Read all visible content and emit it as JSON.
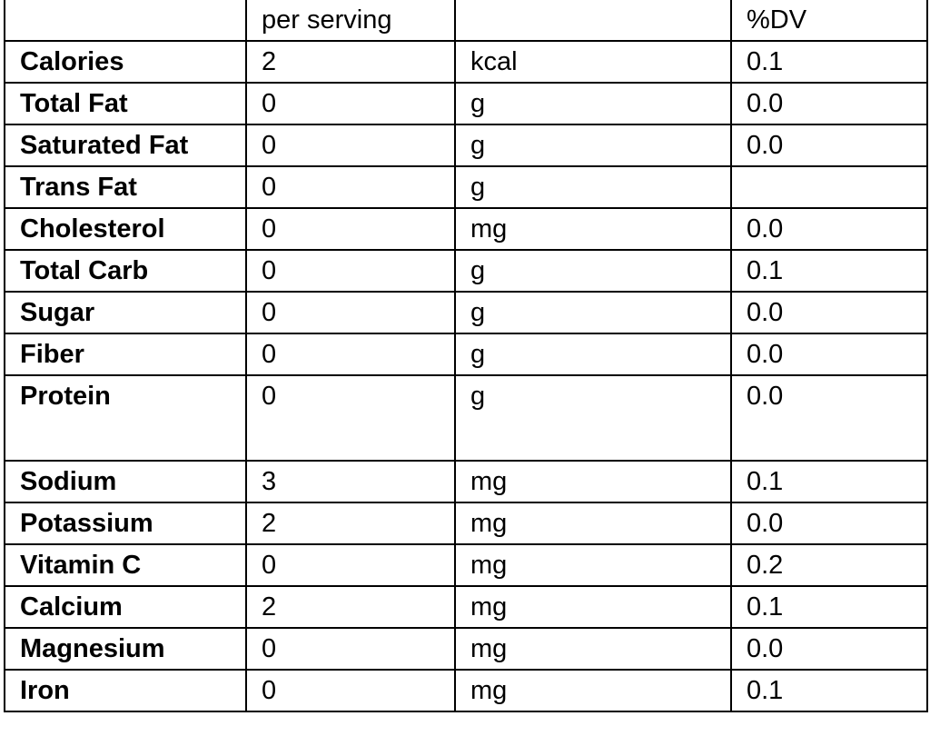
{
  "table": {
    "headers": [
      "",
      "per serving",
      "",
      "%DV"
    ],
    "rows": [
      {
        "nutrient": "Calories",
        "amount": "2",
        "unit": "kcal",
        "dv": "0.1"
      },
      {
        "nutrient": "Total Fat",
        "amount": "0",
        "unit": "g",
        "dv": "0.0"
      },
      {
        "nutrient": "Saturated Fat",
        "amount": "0",
        "unit": "g",
        "dv": "0.0"
      },
      {
        "nutrient": "Trans Fat",
        "amount": "0",
        "unit": "g",
        "dv": ""
      },
      {
        "nutrient": "Cholesterol",
        "amount": "0",
        "unit": "mg",
        "dv": "0.0"
      },
      {
        "nutrient": "Total Carb",
        "amount": "0",
        "unit": "g",
        "dv": "0.1"
      },
      {
        "nutrient": "Sugar",
        "amount": "0",
        "unit": "g",
        "dv": "0.0"
      },
      {
        "nutrient": "Fiber",
        "amount": "0",
        "unit": "g",
        "dv": "0.0"
      },
      {
        "nutrient": "Protein",
        "amount": "0",
        "unit": "g",
        "dv": "0.0"
      },
      {
        "nutrient": "Sodium",
        "amount": "3",
        "unit": "mg",
        "dv": "0.1"
      },
      {
        "nutrient": "Potassium",
        "amount": "2",
        "unit": "mg",
        "dv": "0.0"
      },
      {
        "nutrient": "Vitamin C",
        "amount": "0",
        "unit": "mg",
        "dv": "0.2"
      },
      {
        "nutrient": "Calcium",
        "amount": "2",
        "unit": "mg",
        "dv": "0.1"
      },
      {
        "nutrient": "Magnesium",
        "amount": "0",
        "unit": "mg",
        "dv": "0.0"
      },
      {
        "nutrient": "Iron",
        "amount": "0",
        "unit": "mg",
        "dv": "0.1"
      }
    ]
  }
}
